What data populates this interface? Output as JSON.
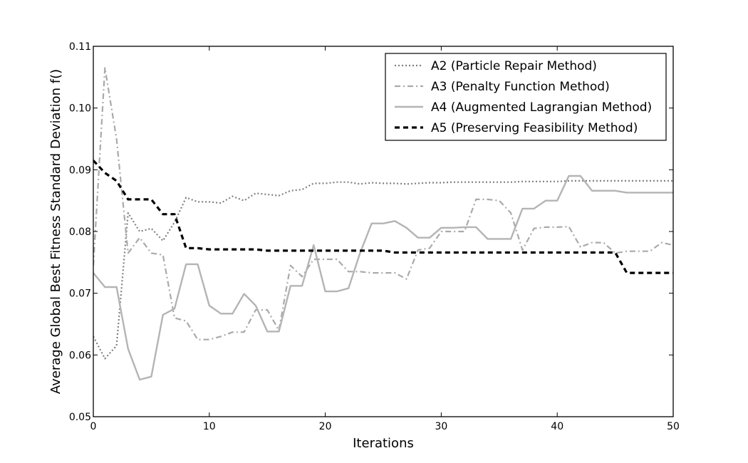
{
  "chart_data": {
    "type": "line",
    "title": "",
    "xlabel": "Iterations",
    "ylabel": "Average Global Best Fitness Standard Deviation f()",
    "xlim": [
      0,
      50
    ],
    "ylim": [
      0.05,
      0.11
    ],
    "xticks": [
      0,
      10,
      20,
      30,
      40,
      50
    ],
    "yticks": [
      0.05,
      0.06,
      0.07,
      0.08,
      0.09,
      0.1,
      0.11
    ],
    "xtick_labels": [
      "0",
      "10",
      "20",
      "30",
      "40",
      "50"
    ],
    "ytick_labels": [
      "0.05",
      "0.06",
      "0.07",
      "0.08",
      "0.09",
      "0.10",
      "0.11"
    ],
    "grid": false,
    "legend_position": "top-right",
    "x": [
      0,
      1,
      2,
      3,
      4,
      5,
      6,
      7,
      8,
      9,
      10,
      11,
      12,
      13,
      14,
      15,
      16,
      17,
      18,
      19,
      20,
      21,
      22,
      23,
      24,
      25,
      26,
      27,
      28,
      29,
      30,
      31,
      32,
      33,
      34,
      35,
      36,
      37,
      38,
      39,
      40,
      41,
      42,
      43,
      44,
      45,
      46,
      47,
      48,
      49,
      50
    ],
    "series": [
      {
        "name": "A2 (Particle Repair Method)",
        "color": "#808080",
        "dash": "dotted",
        "values": [
          0.063,
          0.0594,
          0.0615,
          0.083,
          0.08,
          0.0805,
          0.0785,
          0.0815,
          0.0855,
          0.0848,
          0.0848,
          0.0846,
          0.0857,
          0.085,
          0.0862,
          0.086,
          0.0858,
          0.0866,
          0.0868,
          0.0878,
          0.0878,
          0.088,
          0.088,
          0.0877,
          0.0879,
          0.0878,
          0.0878,
          0.0877,
          0.0878,
          0.0879,
          0.0879,
          0.088,
          0.088,
          0.088,
          0.088,
          0.088,
          0.088,
          0.0881,
          0.0881,
          0.0881,
          0.0881,
          0.0882,
          0.0882,
          0.0882,
          0.0882,
          0.0882,
          0.0882,
          0.0882,
          0.0882,
          0.0882,
          0.0882
        ]
      },
      {
        "name": "A3 (Penalty Function Method)",
        "color": "#aaaaaa",
        "dash": "dashdot",
        "values": [
          0.0745,
          0.1065,
          0.095,
          0.0765,
          0.079,
          0.0765,
          0.0762,
          0.066,
          0.0655,
          0.0625,
          0.0625,
          0.063,
          0.0637,
          0.0637,
          0.0673,
          0.0673,
          0.064,
          0.0745,
          0.0727,
          0.0755,
          0.0755,
          0.0755,
          0.0735,
          0.0735,
          0.0733,
          0.0733,
          0.0733,
          0.0723,
          0.077,
          0.0773,
          0.08,
          0.08,
          0.08,
          0.0852,
          0.0852,
          0.085,
          0.083,
          0.077,
          0.0805,
          0.0807,
          0.0807,
          0.0808,
          0.0775,
          0.0782,
          0.0782,
          0.0765,
          0.0768,
          0.0768,
          0.0768,
          0.0782,
          0.0778
        ]
      },
      {
        "name": "A4 (Augmented Lagrangian Method)",
        "color": "#b4b4b4",
        "dash": "solid",
        "values": [
          0.0733,
          0.071,
          0.071,
          0.061,
          0.056,
          0.0565,
          0.0665,
          0.0675,
          0.0747,
          0.0747,
          0.068,
          0.0667,
          0.0667,
          0.0699,
          0.068,
          0.0638,
          0.0638,
          0.0712,
          0.0712,
          0.0778,
          0.0703,
          0.0703,
          0.0708,
          0.0765,
          0.0813,
          0.0813,
          0.0817,
          0.0806,
          0.079,
          0.079,
          0.0806,
          0.0806,
          0.0807,
          0.0807,
          0.0788,
          0.0788,
          0.0788,
          0.0837,
          0.0837,
          0.085,
          0.085,
          0.089,
          0.089,
          0.0866,
          0.0866,
          0.0866,
          0.0863,
          0.0863,
          0.0863,
          0.0863,
          0.0863
        ]
      },
      {
        "name": "A5 (Preserving Feasibility Method)",
        "color": "#000000",
        "dash": "dashed",
        "values": [
          0.0915,
          0.0895,
          0.0882,
          0.0852,
          0.0852,
          0.0852,
          0.0828,
          0.0828,
          0.0773,
          0.0773,
          0.0771,
          0.0771,
          0.0771,
          0.0771,
          0.0771,
          0.0769,
          0.0769,
          0.0769,
          0.0769,
          0.0769,
          0.0769,
          0.0769,
          0.0769,
          0.0769,
          0.0769,
          0.0769,
          0.0766,
          0.0766,
          0.0766,
          0.0766,
          0.0766,
          0.0766,
          0.0766,
          0.0766,
          0.0766,
          0.0766,
          0.0766,
          0.0766,
          0.0766,
          0.0766,
          0.0766,
          0.0766,
          0.0766,
          0.0766,
          0.0766,
          0.0766,
          0.0733,
          0.0733,
          0.0733,
          0.0733,
          0.0733
        ]
      }
    ]
  }
}
